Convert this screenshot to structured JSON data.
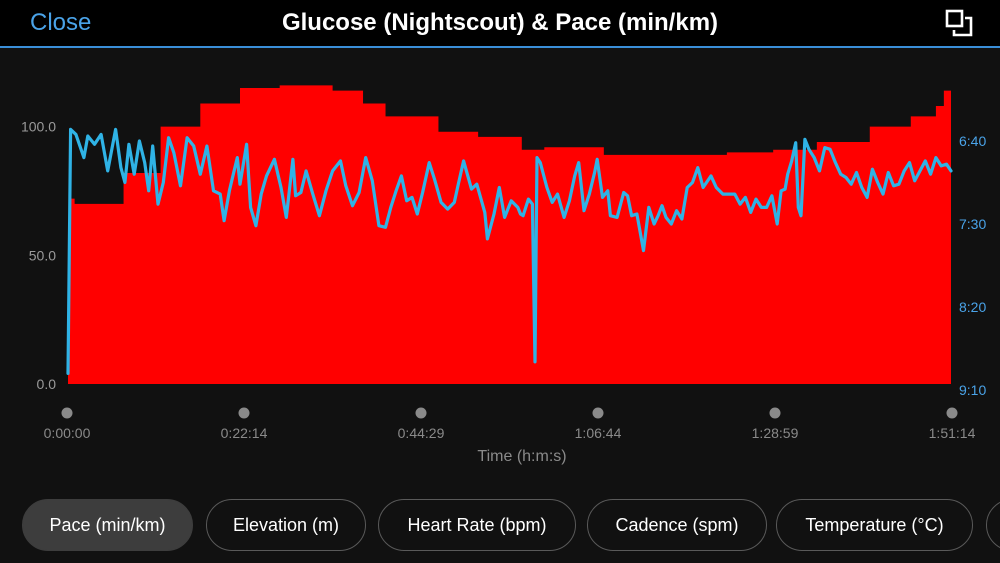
{
  "header": {
    "close_label": "Close",
    "title": "Glucose (Nightscout) & Pace (min/km)"
  },
  "icons": {
    "expand": "expand-icon"
  },
  "colors": {
    "accent": "#4aa3e8",
    "glucose": "#ff0000",
    "pace": "#2fb3e6"
  },
  "chart_data": {
    "type": "area",
    "xlabel": "Time (h:m:s)",
    "x_ticks": [
      "0:00:00",
      "0:22:14",
      "0:44:29",
      "1:06:44",
      "1:28:59",
      "1:51:14"
    ],
    "xlim_seconds": [
      0,
      6674
    ],
    "y_left": {
      "ticks": [
        "100.0",
        "50.0",
        "0.0"
      ],
      "tick_values": [
        100,
        50,
        0
      ],
      "ylim": [
        0,
        115
      ]
    },
    "y_right": {
      "ticks": [
        "6:40",
        "7:30",
        "8:20",
        "9:10"
      ],
      "tick_values_seconds": [
        400,
        450,
        500,
        550
      ],
      "inverted": true
    },
    "series": [
      {
        "color": "#ff0000",
        "type": "area-step",
        "axis": "left",
        "points": [
          [
            0,
            5
          ],
          [
            10,
            72
          ],
          [
            50,
            70
          ],
          [
            420,
            82
          ],
          [
            700,
            100
          ],
          [
            1000,
            109
          ],
          [
            1300,
            115
          ],
          [
            1600,
            116
          ],
          [
            2000,
            114
          ],
          [
            2230,
            109
          ],
          [
            2400,
            104
          ],
          [
            2800,
            98
          ],
          [
            3100,
            96
          ],
          [
            3430,
            91
          ],
          [
            3600,
            92
          ],
          [
            4050,
            89
          ],
          [
            4600,
            89
          ],
          [
            4980,
            90
          ],
          [
            5330,
            91
          ],
          [
            5660,
            94
          ],
          [
            6060,
            100
          ],
          [
            6370,
            104
          ],
          [
            6560,
            108
          ],
          [
            6620,
            114
          ],
          [
            6674,
            114
          ]
        ]
      },
      {
        "color": "#2fb3e6",
        "type": "line",
        "axis": "right",
        "points": [
          [
            0,
            540
          ],
          [
            20,
            393
          ],
          [
            60,
            396
          ],
          [
            120,
            410
          ],
          [
            150,
            397
          ],
          [
            200,
            402
          ],
          [
            250,
            396
          ],
          [
            300,
            418
          ],
          [
            360,
            393
          ],
          [
            400,
            416
          ],
          [
            430,
            425
          ],
          [
            460,
            402
          ],
          [
            500,
            420
          ],
          [
            540,
            400
          ],
          [
            580,
            413
          ],
          [
            610,
            430
          ],
          [
            640,
            403
          ],
          [
            680,
            438
          ],
          [
            720,
            425
          ],
          [
            760,
            398
          ],
          [
            800,
            407
          ],
          [
            850,
            427
          ],
          [
            900,
            398
          ],
          [
            950,
            403
          ],
          [
            1000,
            420
          ],
          [
            1050,
            403
          ],
          [
            1100,
            430
          ],
          [
            1150,
            432
          ],
          [
            1180,
            448
          ],
          [
            1220,
            430
          ],
          [
            1240,
            423
          ],
          [
            1280,
            410
          ],
          [
            1300,
            426
          ],
          [
            1350,
            402
          ],
          [
            1380,
            440
          ],
          [
            1420,
            451
          ],
          [
            1460,
            432
          ],
          [
            1500,
            421
          ],
          [
            1560,
            411
          ],
          [
            1610,
            428
          ],
          [
            1650,
            446
          ],
          [
            1700,
            411
          ],
          [
            1720,
            433
          ],
          [
            1760,
            431
          ],
          [
            1800,
            418
          ],
          [
            1850,
            432
          ],
          [
            1900,
            445
          ],
          [
            1950,
            430
          ],
          [
            2000,
            418
          ],
          [
            2060,
            412
          ],
          [
            2100,
            427
          ],
          [
            2150,
            439
          ],
          [
            2200,
            431
          ],
          [
            2250,
            410
          ],
          [
            2300,
            424
          ],
          [
            2350,
            451
          ],
          [
            2400,
            452
          ],
          [
            2440,
            440
          ],
          [
            2480,
            430
          ],
          [
            2520,
            421
          ],
          [
            2560,
            436
          ],
          [
            2600,
            434
          ],
          [
            2640,
            444
          ],
          [
            2680,
            431
          ],
          [
            2730,
            413
          ],
          [
            2770,
            423
          ],
          [
            2820,
            437
          ],
          [
            2870,
            441
          ],
          [
            2920,
            437
          ],
          [
            2950,
            426
          ],
          [
            2990,
            412
          ],
          [
            3050,
            429
          ],
          [
            3090,
            426
          ],
          [
            3150,
            443
          ],
          [
            3170,
            459
          ],
          [
            3220,
            444
          ],
          [
            3260,
            428
          ],
          [
            3300,
            446
          ],
          [
            3350,
            436
          ],
          [
            3400,
            440
          ],
          [
            3420,
            444
          ],
          [
            3440,
            445
          ],
          [
            3480,
            435
          ],
          [
            3510,
            438
          ],
          [
            3530,
            533
          ],
          [
            3545,
            410
          ],
          [
            3570,
            413
          ],
          [
            3620,
            428
          ],
          [
            3660,
            437
          ],
          [
            3700,
            432
          ],
          [
            3750,
            446
          ],
          [
            3790,
            436
          ],
          [
            3830,
            421
          ],
          [
            3860,
            413
          ],
          [
            3900,
            442
          ],
          [
            3940,
            432
          ],
          [
            3980,
            419
          ],
          [
            4000,
            411
          ],
          [
            4040,
            434
          ],
          [
            4080,
            430
          ],
          [
            4100,
            445
          ],
          [
            4150,
            446
          ],
          [
            4200,
            431
          ],
          [
            4230,
            433
          ],
          [
            4260,
            445
          ],
          [
            4300,
            444
          ],
          [
            4350,
            466
          ],
          [
            4390,
            440
          ],
          [
            4430,
            450
          ],
          [
            4460,
            445
          ],
          [
            4490,
            439
          ],
          [
            4520,
            446
          ],
          [
            4560,
            450
          ],
          [
            4600,
            442
          ],
          [
            4640,
            447
          ],
          [
            4680,
            428
          ],
          [
            4720,
            425
          ],
          [
            4760,
            416
          ],
          [
            4800,
            428
          ],
          [
            4860,
            421
          ],
          [
            4900,
            428
          ],
          [
            4950,
            432
          ],
          [
            5000,
            432
          ],
          [
            5040,
            432
          ],
          [
            5080,
            438
          ],
          [
            5120,
            434
          ],
          [
            5160,
            443
          ],
          [
            5200,
            435
          ],
          [
            5240,
            440
          ],
          [
            5280,
            440
          ],
          [
            5320,
            433
          ],
          [
            5360,
            450
          ],
          [
            5390,
            430
          ],
          [
            5420,
            429
          ],
          [
            5440,
            420
          ],
          [
            5470,
            412
          ],
          [
            5500,
            401
          ],
          [
            5520,
            440
          ],
          [
            5540,
            445
          ],
          [
            5570,
            399
          ],
          [
            5600,
            405
          ],
          [
            5640,
            410
          ],
          [
            5680,
            418
          ],
          [
            5720,
            404
          ],
          [
            5760,
            405
          ],
          [
            5800,
            413
          ],
          [
            5840,
            420
          ],
          [
            5880,
            422
          ],
          [
            5920,
            426
          ],
          [
            5960,
            419
          ],
          [
            6000,
            428
          ],
          [
            6040,
            434
          ],
          [
            6080,
            417
          ],
          [
            6120,
            425
          ],
          [
            6160,
            432
          ],
          [
            6200,
            419
          ],
          [
            6240,
            427
          ],
          [
            6280,
            426
          ],
          [
            6320,
            418
          ],
          [
            6360,
            413
          ],
          [
            6400,
            424
          ],
          [
            6440,
            418
          ],
          [
            6480,
            412
          ],
          [
            6520,
            420
          ],
          [
            6560,
            410
          ],
          [
            6600,
            415
          ],
          [
            6640,
            414
          ],
          [
            6674,
            418
          ]
        ]
      }
    ]
  },
  "tabs": [
    {
      "label": "Pace (min/km)",
      "active": true
    },
    {
      "label": "Elevation (m)",
      "active": false
    },
    {
      "label": "Heart Rate (bpm)",
      "active": false
    },
    {
      "label": "Cadence (spm)",
      "active": false
    },
    {
      "label": "Temperature (°C)",
      "active": false
    }
  ]
}
